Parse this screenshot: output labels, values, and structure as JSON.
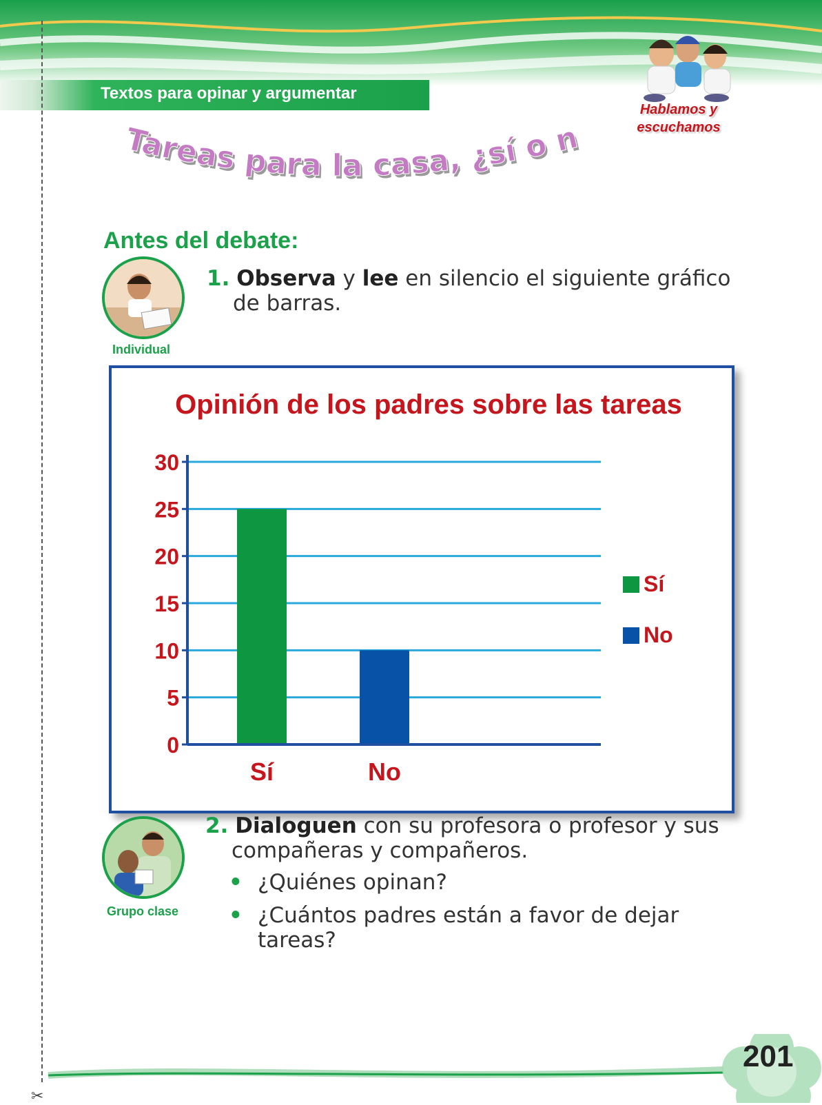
{
  "header": {
    "section": "Textos para opinar y argumentar",
    "badge": "Hablamos y escuchamos",
    "badge_line1": "Hablamos y",
    "badge_line2": "escuchamos"
  },
  "title": "Tareas para la casa, ¿sí o no?",
  "subheading": "Antes del debate:",
  "step1": {
    "number": "1.",
    "verb1": "Observa",
    "conj": "y",
    "verb2": "lee",
    "rest_line1": "en silencio el siguiente gráfico",
    "rest_line2": "de barras.",
    "mode": "Individual"
  },
  "step2": {
    "number": "2.",
    "verb": "Dialoguen",
    "rest_line1": "con su profesora o profesor y sus",
    "rest_line2": "compañeras y compañeros.",
    "mode": "Grupo clase",
    "bullets": [
      {
        "line1": "¿Quiénes opinan?",
        "line2": ""
      },
      {
        "line1": "¿Cuántos padres están a favor de dejar",
        "line2": "tareas?"
      }
    ]
  },
  "chart_data": {
    "type": "bar",
    "title": "Opinión de los padres sobre las tareas",
    "categories": [
      "Sí",
      "No"
    ],
    "values": [
      25,
      10
    ],
    "colors": [
      "#0e9640",
      "#0853a8"
    ],
    "ylim": [
      0,
      30
    ],
    "yticks": [
      "0",
      "5",
      "10",
      "15",
      "20",
      "25",
      "30"
    ],
    "grid": true,
    "legend": [
      {
        "label": "Sí",
        "color": "#0e9640"
      },
      {
        "label": "No",
        "color": "#0853a8"
      }
    ],
    "legend_position": "right"
  },
  "page_number": "201",
  "colors": {
    "accent_green": "#1aa14a",
    "title_pink": "#c47bc4",
    "chart_red": "#c4161c",
    "frame_blue": "#1f4fa0",
    "grid_blue": "#29a8dc"
  }
}
